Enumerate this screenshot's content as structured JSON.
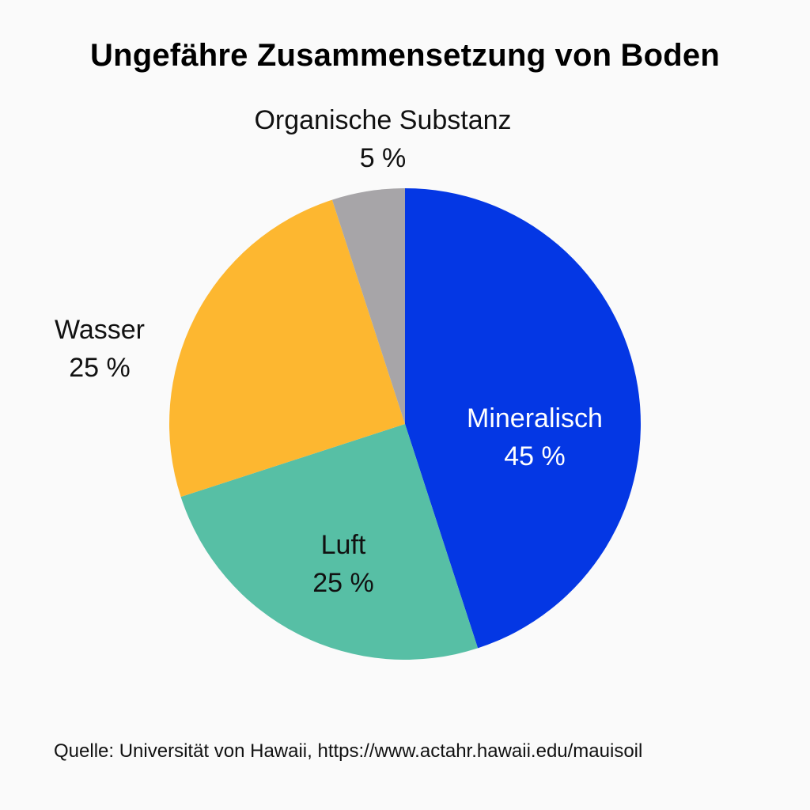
{
  "title": "Ungefähre Zusammensetzung von Boden",
  "source": "Quelle: Universität von Hawaii, https://www.actahr.hawaii.edu/mauisoil",
  "chart_data": {
    "type": "pie",
    "title": "Ungefähre Zusammensetzung von Boden",
    "slices": [
      {
        "label": "Mineralisch",
        "value": 45,
        "value_label": "45 %",
        "color": "#0437e4",
        "label_color": "#ffffff"
      },
      {
        "label": "Luft",
        "value": 25,
        "value_label": "25 %",
        "color": "#57bfa5",
        "label_color": "#111111"
      },
      {
        "label": "Wasser",
        "value": 25,
        "value_label": "25 %",
        "color": "#fdb730",
        "label_color": "#111111"
      },
      {
        "label": "Organische Substanz",
        "value": 5,
        "value_label": "5 %",
        "color": "#a7a5a8",
        "label_color": "#111111"
      }
    ]
  }
}
